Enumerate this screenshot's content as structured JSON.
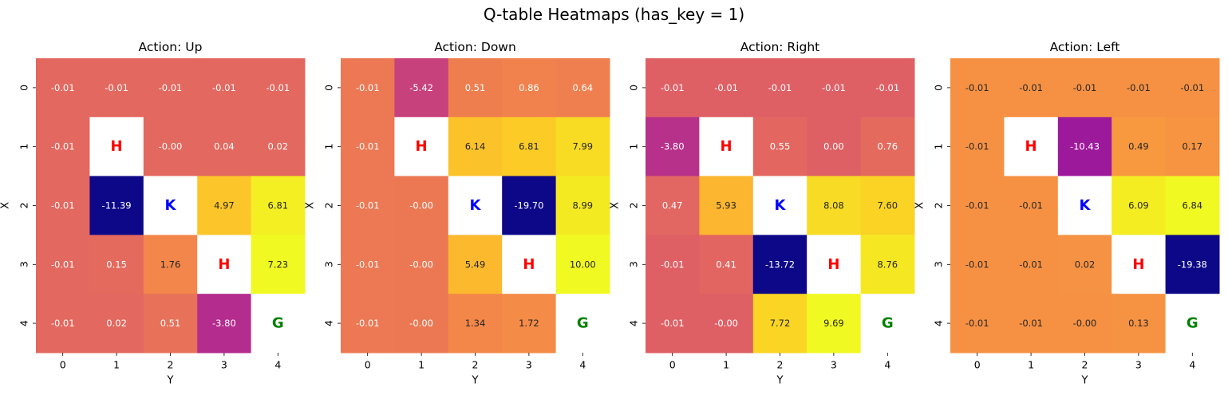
{
  "title": "Q-table Heatmaps (has_key = 1)",
  "chart_data": [
    {
      "type": "heatmap",
      "title": "Action: Up",
      "xlabel": "Y",
      "ylabel": "X",
      "x_ticks": [
        "0",
        "1",
        "2",
        "3",
        "4"
      ],
      "y_ticks": [
        "0",
        "1",
        "2",
        "3",
        "4"
      ],
      "colormap": "plasma",
      "vmin": -11.39,
      "vmax": 7.23,
      "cells": [
        [
          -0.01,
          -0.01,
          -0.01,
          -0.01,
          -0.01
        ],
        [
          -0.01,
          null,
          -0.0,
          0.04,
          0.02
        ],
        [
          -0.01,
          -11.39,
          null,
          4.97,
          6.81
        ],
        [
          -0.01,
          0.15,
          1.76,
          null,
          7.23
        ],
        [
          -0.01,
          0.02,
          0.51,
          -3.8,
          null
        ]
      ],
      "labels": [
        [
          "-0.01",
          "-0.01",
          "-0.01",
          "-0.01",
          "-0.01"
        ],
        [
          "-0.01",
          "H",
          "-0.00",
          "0.04",
          "0.02"
        ],
        [
          "-0.01",
          "-11.39",
          "K",
          "4.97",
          "6.81"
        ],
        [
          "-0.01",
          "0.15",
          "1.76",
          "H",
          "7.23"
        ],
        [
          "-0.01",
          "0.02",
          "0.51",
          "-3.80",
          "G"
        ]
      ]
    },
    {
      "type": "heatmap",
      "title": "Action: Down",
      "xlabel": "Y",
      "ylabel": "X",
      "x_ticks": [
        "0",
        "1",
        "2",
        "3",
        "4"
      ],
      "y_ticks": [
        "0",
        "1",
        "2",
        "3",
        "4"
      ],
      "colormap": "plasma",
      "vmin": -19.7,
      "vmax": 10.0,
      "cells": [
        [
          -0.01,
          -5.42,
          0.51,
          0.86,
          0.64
        ],
        [
          -0.01,
          null,
          6.14,
          6.81,
          7.99
        ],
        [
          -0.01,
          -0.0,
          null,
          -19.7,
          8.99
        ],
        [
          -0.01,
          -0.0,
          5.49,
          null,
          10.0
        ],
        [
          -0.01,
          -0.0,
          1.34,
          1.72,
          null
        ]
      ],
      "labels": [
        [
          "-0.01",
          "-5.42",
          "0.51",
          "0.86",
          "0.64"
        ],
        [
          "-0.01",
          "H",
          "6.14",
          "6.81",
          "7.99"
        ],
        [
          "-0.01",
          "-0.00",
          "K",
          "-19.70",
          "8.99"
        ],
        [
          "-0.01",
          "-0.00",
          "5.49",
          "H",
          "10.00"
        ],
        [
          "-0.01",
          "-0.00",
          "1.34",
          "1.72",
          "G"
        ]
      ]
    },
    {
      "type": "heatmap",
      "title": "Action: Right",
      "xlabel": "Y",
      "ylabel": "X",
      "x_ticks": [
        "0",
        "1",
        "2",
        "3",
        "4"
      ],
      "y_ticks": [
        "0",
        "1",
        "2",
        "3",
        "4"
      ],
      "colormap": "plasma",
      "vmin": -13.72,
      "vmax": 9.69,
      "cells": [
        [
          -0.01,
          -0.01,
          -0.01,
          -0.01,
          -0.01
        ],
        [
          -3.8,
          null,
          0.55,
          0.0,
          0.76
        ],
        [
          0.47,
          5.93,
          null,
          8.08,
          7.6
        ],
        [
          -0.01,
          0.41,
          -13.72,
          null,
          8.76
        ],
        [
          -0.01,
          -0.0,
          7.72,
          9.69,
          null
        ]
      ],
      "labels": [
        [
          "-0.01",
          "-0.01",
          "-0.01",
          "-0.01",
          "-0.01"
        ],
        [
          "-3.80",
          "H",
          "0.55",
          "0.00",
          "0.76"
        ],
        [
          "0.47",
          "5.93",
          "K",
          "8.08",
          "7.60"
        ],
        [
          "-0.01",
          "0.41",
          "-13.72",
          "H",
          "8.76"
        ],
        [
          "-0.01",
          "-0.00",
          "7.72",
          "9.69",
          "G"
        ]
      ]
    },
    {
      "type": "heatmap",
      "title": "Action: Left",
      "xlabel": "Y",
      "ylabel": "X",
      "x_ticks": [
        "0",
        "1",
        "2",
        "3",
        "4"
      ],
      "y_ticks": [
        "0",
        "1",
        "2",
        "3",
        "4"
      ],
      "colormap": "plasma",
      "vmin": -19.38,
      "vmax": 6.84,
      "cells": [
        [
          -0.01,
          -0.01,
          -0.01,
          -0.01,
          -0.01
        ],
        [
          -0.01,
          null,
          -10.43,
          0.49,
          0.17
        ],
        [
          -0.01,
          -0.01,
          null,
          6.09,
          6.84
        ],
        [
          -0.01,
          -0.01,
          0.02,
          null,
          -19.38
        ],
        [
          -0.01,
          -0.01,
          -0.0,
          0.13,
          null
        ]
      ],
      "labels": [
        [
          "-0.01",
          "-0.01",
          "-0.01",
          "-0.01",
          "-0.01"
        ],
        [
          "-0.01",
          "H",
          "-10.43",
          "0.49",
          "0.17"
        ],
        [
          "-0.01",
          "-0.01",
          "K",
          "6.09",
          "6.84"
        ],
        [
          "-0.01",
          "-0.01",
          "0.02",
          "H",
          "-19.38"
        ],
        [
          "-0.01",
          "-0.01",
          "-0.00",
          "0.13",
          "G"
        ]
      ]
    }
  ],
  "special_cells": {
    "H": {
      "meaning_color": "#ff0000"
    },
    "K": {
      "meaning_color": "#0000ff"
    },
    "G": {
      "meaning_color": "#008000"
    }
  }
}
